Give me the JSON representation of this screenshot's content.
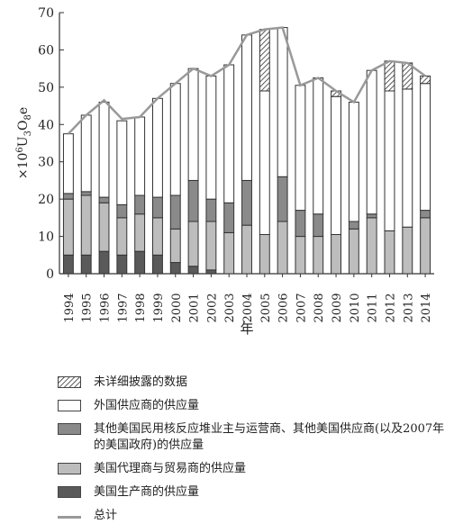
{
  "chart_data": {
    "type": "bar",
    "stacked": true,
    "ylabel_main": "×10",
    "ylabel_parts": [
      "6",
      "U",
      "3",
      "O",
      "8",
      "e"
    ],
    "xlabel": "年",
    "ylim": [
      0,
      70
    ],
    "yticks": [
      0,
      10,
      20,
      30,
      40,
      50,
      60,
      70
    ],
    "categories": [
      "1994",
      "1995",
      "1996",
      "1997",
      "1998",
      "1999",
      "2000",
      "2001",
      "2002",
      "2003",
      "2004",
      "2005",
      "2006",
      "2007",
      "2008",
      "2009",
      "2010",
      "2011",
      "2012",
      "2013",
      "2014"
    ],
    "series": [
      {
        "name": "美国生产商的供应量",
        "color": "#5a5a5a",
        "pattern": "solid",
        "values": [
          5,
          5,
          6,
          5,
          6,
          5,
          3,
          2,
          1,
          0,
          0,
          0,
          0,
          0,
          0,
          0,
          0,
          0,
          0,
          0,
          0
        ]
      },
      {
        "name": "美国代理商与贸易商的供应量",
        "color": "#bdbdbd",
        "pattern": "solid",
        "values": [
          15,
          16,
          13,
          10,
          10,
          10,
          9,
          12,
          13,
          11,
          13,
          10.5,
          14,
          10,
          10,
          10.5,
          12,
          15,
          11.5,
          12.5,
          15
        ]
      },
      {
        "name": "其他美国民用核反应堆业主与运营商、其他美国供应商(以及2007年的美国政府)的供应量",
        "color": "#8a8a8a",
        "pattern": "solid",
        "values": [
          1.5,
          1,
          1.5,
          3.5,
          5,
          5.5,
          9,
          11,
          6,
          8,
          12,
          0,
          12,
          7,
          6,
          0,
          2,
          1,
          0,
          0,
          2
        ]
      },
      {
        "name": "外国供应商的供应量",
        "color": "#ffffff",
        "pattern": "solid",
        "values": [
          16,
          20.5,
          25.5,
          22.5,
          21,
          26.5,
          30,
          30,
          33,
          37,
          39,
          38.5,
          40,
          33.5,
          36.5,
          37,
          32,
          38.5,
          37.5,
          37,
          34
        ]
      },
      {
        "name": "未详细披露的数据",
        "color": "#ffffff",
        "pattern": "hatch",
        "values": [
          0,
          0,
          0,
          0,
          0,
          0,
          0,
          0,
          0,
          0,
          0,
          16.5,
          0,
          0,
          0,
          1.5,
          0,
          0,
          8,
          7,
          2
        ]
      }
    ],
    "total": {
      "name": "总计",
      "color": "#999999",
      "values": [
        37.5,
        42.5,
        46.5,
        41.5,
        42,
        47,
        51,
        55,
        53,
        56,
        64,
        65.5,
        66,
        50.5,
        52.5,
        49,
        46,
        54.5,
        57,
        56.5,
        53
      ]
    },
    "legend_order": [
      4,
      3,
      2,
      1,
      0
    ],
    "legend_position": "bottom",
    "grid": false
  }
}
